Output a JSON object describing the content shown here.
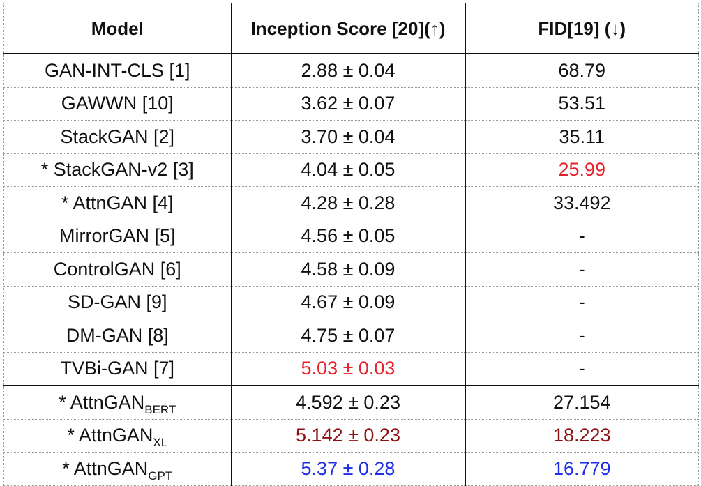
{
  "table": {
    "headers": [
      "Model",
      "Inception Score [20](↑)",
      "FID[19] (↓)"
    ],
    "rows": [
      {
        "model": "GAN-INT-CLS [1]",
        "model_sub": "",
        "is": "2.88 ± 0.04",
        "fid": "68.79",
        "is_color": "",
        "fid_color": ""
      },
      {
        "model": "GAWWN [10]",
        "model_sub": "",
        "is": "3.62 ± 0.07",
        "fid": "53.51",
        "is_color": "",
        "fid_color": ""
      },
      {
        "model": "StackGAN [2]",
        "model_sub": "",
        "is": "3.70 ± 0.04",
        "fid": "35.11",
        "is_color": "",
        "fid_color": ""
      },
      {
        "model": "* StackGAN-v2 [3]",
        "model_sub": "",
        "is": "4.04 ± 0.05",
        "fid": "25.99",
        "is_color": "",
        "fid_color": "#e8202a"
      },
      {
        "model": "* AttnGAN [4]",
        "model_sub": "",
        "is": "4.28 ± 0.28",
        "fid": "33.492",
        "is_color": "",
        "fid_color": ""
      },
      {
        "model": "MirrorGAN [5]",
        "model_sub": "",
        "is": "4.56 ± 0.05",
        "fid": "-",
        "is_color": "",
        "fid_color": ""
      },
      {
        "model": "ControlGAN [6]",
        "model_sub": "",
        "is": "4.58 ± 0.09",
        "fid": "-",
        "is_color": "",
        "fid_color": ""
      },
      {
        "model": "SD-GAN [9]",
        "model_sub": "",
        "is": "4.67 ± 0.09",
        "fid": "-",
        "is_color": "",
        "fid_color": ""
      },
      {
        "model": "DM-GAN [8]",
        "model_sub": "",
        "is": "4.75 ± 0.07",
        "fid": "-",
        "is_color": "",
        "fid_color": ""
      },
      {
        "model": "TVBi-GAN [7]",
        "model_sub": "",
        "is": "5.03 ± 0.03",
        "fid": "-",
        "is_color": "#e8202a",
        "fid_color": ""
      },
      {
        "model": "* AttnGAN",
        "model_sub": "BERT",
        "is": "4.592 ± 0.23",
        "fid": "27.154",
        "is_color": "",
        "fid_color": ""
      },
      {
        "model": "* AttnGAN",
        "model_sub": "XL",
        "is": "5.142 ± 0.23",
        "fid": "18.223",
        "is_color": "#8b1010",
        "fid_color": "#8b1010"
      },
      {
        "model": "* AttnGAN",
        "model_sub": "GPT",
        "is": "5.37 ± 0.28",
        "fid": "16.779",
        "is_color": "#1f2ee6",
        "fid_color": "#1f2ee6"
      }
    ]
  }
}
